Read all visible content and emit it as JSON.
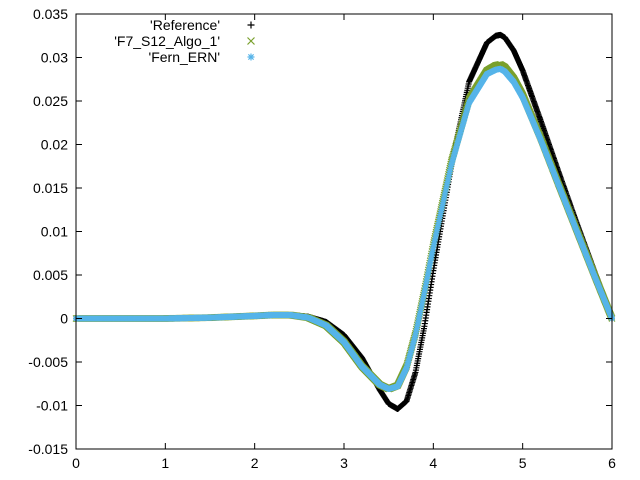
{
  "chart_data": {
    "type": "scatter",
    "title": "",
    "xlabel": "",
    "ylabel": "",
    "xlim": [
      0,
      6
    ],
    "ylim": [
      -0.015,
      0.035
    ],
    "x_ticks": [
      "0",
      "1",
      "2",
      "3",
      "4",
      "5",
      "6"
    ],
    "y_ticks": [
      "-0.015",
      "-0.01",
      "-0.005",
      "0",
      "0.005",
      "0.01",
      "0.015",
      "0.02",
      "0.025",
      "0.03",
      "0.035"
    ],
    "x_tick_values": [
      0,
      1,
      2,
      3,
      4,
      5,
      6
    ],
    "y_tick_values": [
      -0.015,
      -0.01,
      -0.005,
      0,
      0.005,
      0.01,
      0.015,
      0.02,
      0.025,
      0.03,
      0.035
    ],
    "grid": false,
    "legend_position": "top-left",
    "series": [
      {
        "name": "'Reference'",
        "marker": "plus",
        "color": "#000000",
        "x": [
          0,
          0.5,
          1.0,
          1.5,
          2.0,
          2.2,
          2.4,
          2.6,
          2.8,
          3.0,
          3.2,
          3.4,
          3.5,
          3.6,
          3.7,
          3.8,
          3.9,
          4.0,
          4.2,
          4.4,
          4.6,
          4.7,
          4.75,
          4.8,
          4.9,
          5.0,
          5.2,
          5.4,
          5.6,
          5.8,
          6.0
        ],
        "y": [
          0,
          0,
          0,
          0.0001,
          0.0003,
          0.0004,
          0.0004,
          0.0002,
          -0.0004,
          -0.0019,
          -0.0045,
          -0.0082,
          -0.0098,
          -0.0104,
          -0.0095,
          -0.0062,
          -0.0009,
          0.0055,
          0.0175,
          0.0272,
          0.0317,
          0.0325,
          0.0326,
          0.0323,
          0.0308,
          0.0285,
          0.0228,
          0.0169,
          0.0111,
          0.0055,
          0.0
        ]
      },
      {
        "name": "'F7_S12_Algo_1'",
        "marker": "cross",
        "color": "#7aa02c",
        "x": [
          0,
          0.5,
          1.0,
          1.5,
          2.0,
          2.2,
          2.4,
          2.6,
          2.8,
          3.0,
          3.2,
          3.4,
          3.5,
          3.6,
          3.7,
          3.8,
          3.9,
          4.0,
          4.2,
          4.4,
          4.6,
          4.7,
          4.75,
          4.8,
          4.9,
          5.0,
          5.2,
          5.4,
          5.6,
          5.8,
          6.0
        ],
        "y": [
          0,
          0,
          0,
          0.0001,
          0.0003,
          0.0004,
          0.0004,
          0.0001,
          -0.0008,
          -0.0027,
          -0.0055,
          -0.0076,
          -0.0081,
          -0.0077,
          -0.0055,
          -0.0017,
          0.0032,
          0.0085,
          0.018,
          0.0252,
          0.0285,
          0.0291,
          0.0292,
          0.0289,
          0.0276,
          0.0257,
          0.0208,
          0.0155,
          0.0103,
          0.0051,
          0.0
        ]
      },
      {
        "name": "'Fern_ERN'",
        "marker": "star",
        "color": "#56b4e9",
        "x": [
          0,
          0.5,
          1.0,
          1.5,
          2.0,
          2.2,
          2.4,
          2.6,
          2.8,
          3.0,
          3.2,
          3.4,
          3.5,
          3.6,
          3.7,
          3.8,
          3.9,
          4.0,
          4.2,
          4.4,
          4.6,
          4.7,
          4.75,
          4.8,
          4.9,
          5.0,
          5.2,
          5.4,
          5.6,
          5.8,
          6.0
        ],
        "y": [
          0,
          0,
          0,
          0.0001,
          0.0003,
          0.0004,
          0.0004,
          0.0001,
          -0.0008,
          -0.0027,
          -0.0055,
          -0.0076,
          -0.0081,
          -0.0078,
          -0.0057,
          -0.0019,
          0.003,
          0.0082,
          0.0176,
          0.0248,
          0.0281,
          0.0286,
          0.0287,
          0.0284,
          0.0272,
          0.0254,
          0.0206,
          0.0154,
          0.0102,
          0.005,
          0.0
        ]
      }
    ]
  }
}
